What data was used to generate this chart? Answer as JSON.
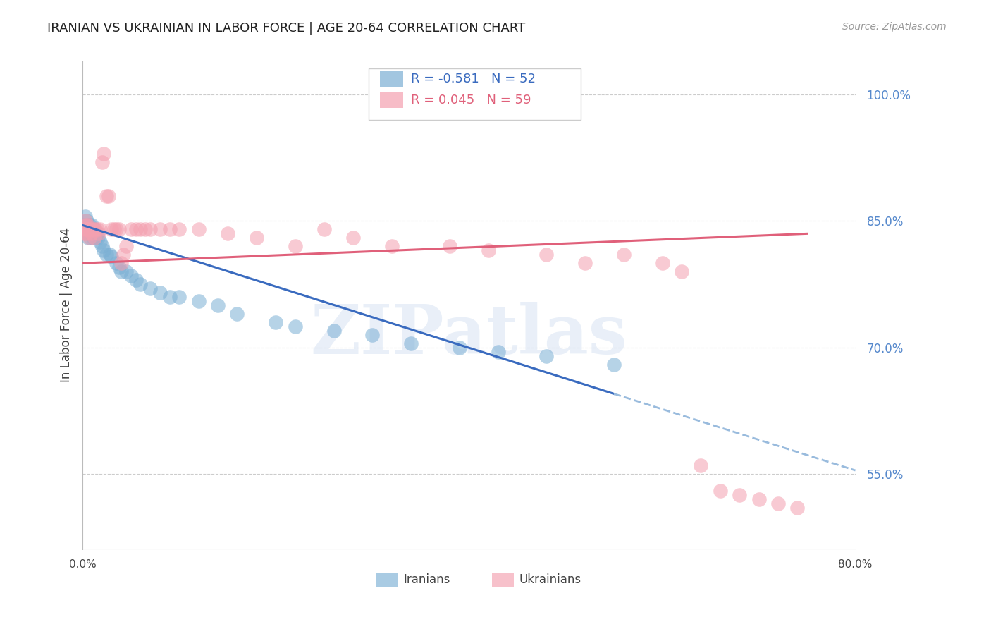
{
  "title": "IRANIAN VS UKRAINIAN IN LABOR FORCE | AGE 20-64 CORRELATION CHART",
  "source": "Source: ZipAtlas.com",
  "ylabel": "In Labor Force | Age 20-64",
  "xlim": [
    0.0,
    0.8
  ],
  "ylim": [
    0.46,
    1.04
  ],
  "yticks_right": [
    0.55,
    0.7,
    0.85,
    1.0
  ],
  "grid_color": "#cccccc",
  "background_color": "#ffffff",
  "iranian_color": "#7bafd4",
  "ukrainian_color": "#f4a0b0",
  "iranian_line_color": "#3a6bbf",
  "ukrainian_line_color": "#e0607a",
  "dashed_line_color": "#99bbdd",
  "watermark": "ZIPatlas",
  "iranians_label": "Iranians",
  "ukrainians_label": "Ukrainians",
  "legend_iranian_R": "-0.581",
  "legend_iranian_N": "52",
  "legend_ukrainian_R": "0.045",
  "legend_ukrainian_N": "59",
  "iranian_x": [
    0.001,
    0.002,
    0.003,
    0.003,
    0.004,
    0.004,
    0.005,
    0.005,
    0.006,
    0.006,
    0.007,
    0.007,
    0.008,
    0.008,
    0.009,
    0.01,
    0.01,
    0.011,
    0.012,
    0.013,
    0.014,
    0.015,
    0.016,
    0.018,
    0.02,
    0.022,
    0.025,
    0.028,
    0.03,
    0.035,
    0.038,
    0.04,
    0.045,
    0.05,
    0.055,
    0.06,
    0.07,
    0.08,
    0.09,
    0.1,
    0.12,
    0.14,
    0.16,
    0.2,
    0.22,
    0.26,
    0.3,
    0.34,
    0.39,
    0.43,
    0.48,
    0.55
  ],
  "iranian_y": [
    0.84,
    0.845,
    0.855,
    0.84,
    0.85,
    0.835,
    0.84,
    0.845,
    0.83,
    0.84,
    0.845,
    0.835,
    0.84,
    0.83,
    0.845,
    0.84,
    0.835,
    0.83,
    0.84,
    0.835,
    0.83,
    0.835,
    0.83,
    0.825,
    0.82,
    0.815,
    0.81,
    0.81,
    0.808,
    0.8,
    0.795,
    0.79,
    0.79,
    0.785,
    0.78,
    0.775,
    0.77,
    0.765,
    0.76,
    0.76,
    0.755,
    0.75,
    0.74,
    0.73,
    0.725,
    0.72,
    0.715,
    0.705,
    0.7,
    0.695,
    0.69,
    0.68
  ],
  "ukrainian_x": [
    0.001,
    0.002,
    0.003,
    0.003,
    0.004,
    0.004,
    0.005,
    0.005,
    0.006,
    0.007,
    0.007,
    0.008,
    0.009,
    0.01,
    0.011,
    0.012,
    0.013,
    0.015,
    0.017,
    0.018,
    0.02,
    0.022,
    0.025,
    0.027,
    0.03,
    0.033,
    0.035,
    0.038,
    0.04,
    0.042,
    0.045,
    0.05,
    0.055,
    0.06,
    0.065,
    0.07,
    0.08,
    0.09,
    0.1,
    0.12,
    0.15,
    0.18,
    0.22,
    0.25,
    0.28,
    0.32,
    0.38,
    0.42,
    0.48,
    0.52,
    0.56,
    0.6,
    0.62,
    0.64,
    0.66,
    0.68,
    0.7,
    0.72,
    0.74
  ],
  "ukrainian_y": [
    0.84,
    0.835,
    0.85,
    0.845,
    0.84,
    0.835,
    0.84,
    0.845,
    0.84,
    0.83,
    0.84,
    0.84,
    0.835,
    0.84,
    0.84,
    0.83,
    0.84,
    0.84,
    0.835,
    0.84,
    0.92,
    0.93,
    0.88,
    0.88,
    0.84,
    0.84,
    0.84,
    0.84,
    0.8,
    0.81,
    0.82,
    0.84,
    0.84,
    0.84,
    0.84,
    0.84,
    0.84,
    0.84,
    0.84,
    0.84,
    0.835,
    0.83,
    0.82,
    0.84,
    0.83,
    0.82,
    0.82,
    0.815,
    0.81,
    0.8,
    0.81,
    0.8,
    0.79,
    0.56,
    0.53,
    0.525,
    0.52,
    0.515,
    0.51
  ]
}
